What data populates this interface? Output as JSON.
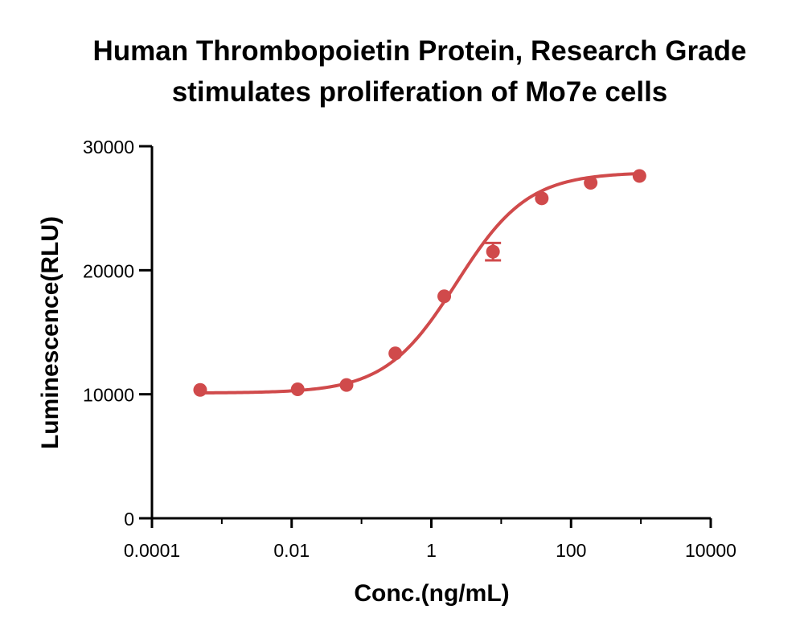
{
  "chart_data": {
    "type": "scatter",
    "title": "Human Thrombopoietin Protein, Research Grade",
    "subtitle": "stimulates proliferation of Mo7e cells",
    "xlabel": "Conc.(ng/mL)",
    "ylabel": "Luminescence(RLU)",
    "x_scale": "log",
    "xlim": [
      0.0001,
      10000
    ],
    "ylim": [
      0,
      30000
    ],
    "x_ticks": [
      "0.0001",
      "0.01",
      "1",
      "100",
      "10000"
    ],
    "x_tick_values": [
      0.0001,
      0.01,
      1,
      100,
      10000
    ],
    "y_ticks": [
      "0",
      "10000",
      "20000",
      "30000"
    ],
    "y_tick_values": [
      0,
      10000,
      20000,
      30000
    ],
    "grid": false,
    "legend": "none",
    "color": "#d04a4b",
    "series": [
      {
        "points": [
          {
            "x": 0.00049,
            "y": 10350
          },
          {
            "x": 0.0122,
            "y": 10400
          },
          {
            "x": 0.061,
            "y": 10750
          },
          {
            "x": 0.305,
            "y": 13300
          },
          {
            "x": 1.53,
            "y": 17900
          },
          {
            "x": 7.63,
            "y": 21500,
            "err": 700
          },
          {
            "x": 38.1,
            "y": 25800
          },
          {
            "x": 191,
            "y": 27050
          },
          {
            "x": 954,
            "y": 27600
          }
        ]
      }
    ],
    "fit_curve": {
      "model": "4PL",
      "bottom": 10100,
      "top": 27900,
      "ec50": 2.3,
      "hill": 0.85,
      "x_range": [
        0.00049,
        954
      ]
    }
  }
}
